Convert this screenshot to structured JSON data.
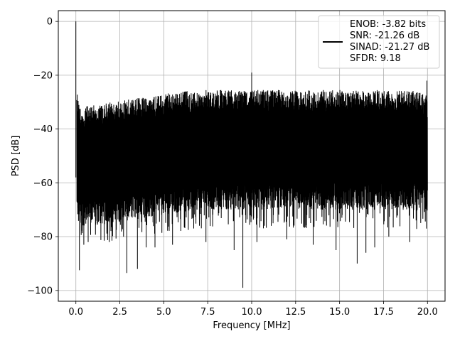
{
  "chart_data": {
    "type": "line",
    "title": "",
    "xlabel": "Frequency [MHz]",
    "ylabel": "PSD [dB]",
    "xlim": [
      -1,
      21
    ],
    "ylim": [
      -104,
      4
    ],
    "xticks": [
      0.0,
      2.5,
      5.0,
      7.5,
      10.0,
      12.5,
      15.0,
      17.5,
      20.0
    ],
    "xtick_labels": [
      "0.0",
      "2.5",
      "5.0",
      "7.5",
      "10.0",
      "12.5",
      "15.0",
      "17.5",
      "20.0"
    ],
    "yticks": [
      0,
      -20,
      -40,
      -60,
      -80,
      -100
    ],
    "ytick_labels": [
      "0",
      "−20",
      "−40",
      "−60",
      "−80",
      "−100"
    ],
    "grid": true,
    "legend_placement": "upper right",
    "line_color": "#000000",
    "legend_entries": [
      "ENOB: -3.82 bits",
      "SNR: -21.26 dB",
      "SINAD: -21.27 dB",
      "SFDR: 9.18"
    ],
    "series": [
      {
        "type": "spectrum",
        "x": [
          0.0,
          0.03,
          0.05,
          0.1,
          0.3,
          1.0,
          2.0,
          3.0,
          4.0,
          5.0,
          6.0,
          7.0,
          8.0,
          9.0,
          10.0,
          11.0,
          12.0,
          13.0,
          14.0,
          15.0,
          16.0,
          17.0,
          18.0,
          19.0,
          19.95,
          20.0
        ],
        "upper": [
          0,
          -22,
          -24,
          -27,
          -32,
          -31,
          -30,
          -29,
          -28,
          -27,
          -26,
          -25.5,
          -25.5,
          -25.5,
          -25.5,
          -25.5,
          -25.5,
          -25.5,
          -25.5,
          -25.5,
          -25.5,
          -25.5,
          -25.5,
          -25.5,
          -27,
          -28
        ],
        "lower_typical": [
          -58,
          -65,
          -70,
          -72,
          -73,
          -73,
          -72,
          -71,
          -70,
          -69,
          -68,
          -67,
          -67,
          -67,
          -67,
          -67,
          -67,
          -67,
          -67,
          -67,
          -67,
          -67,
          -67,
          -67,
          -68,
          -68
        ],
        "spurs": [
          {
            "x": 0.0,
            "y": 0
          },
          {
            "x": 10.0,
            "y": -19
          },
          {
            "x": 19.97,
            "y": -22
          }
        ],
        "deep_dips": [
          {
            "x": 0.2,
            "y": -92.5
          },
          {
            "x": 0.45,
            "y": -83
          },
          {
            "x": 0.7,
            "y": -82
          },
          {
            "x": 1.9,
            "y": -82
          },
          {
            "x": 2.9,
            "y": -93.5
          },
          {
            "x": 3.5,
            "y": -92
          },
          {
            "x": 4.0,
            "y": -84
          },
          {
            "x": 4.5,
            "y": -84
          },
          {
            "x": 5.5,
            "y": -83
          },
          {
            "x": 7.4,
            "y": -82
          },
          {
            "x": 9.0,
            "y": -85
          },
          {
            "x": 9.5,
            "y": -99
          },
          {
            "x": 10.3,
            "y": -82
          },
          {
            "x": 12.0,
            "y": -81
          },
          {
            "x": 13.5,
            "y": -83
          },
          {
            "x": 14.8,
            "y": -85
          },
          {
            "x": 16.0,
            "y": -90
          },
          {
            "x": 16.5,
            "y": -86
          },
          {
            "x": 17.0,
            "y": -84
          },
          {
            "x": 17.8,
            "y": -80
          },
          {
            "x": 19.0,
            "y": -82
          }
        ]
      }
    ]
  }
}
